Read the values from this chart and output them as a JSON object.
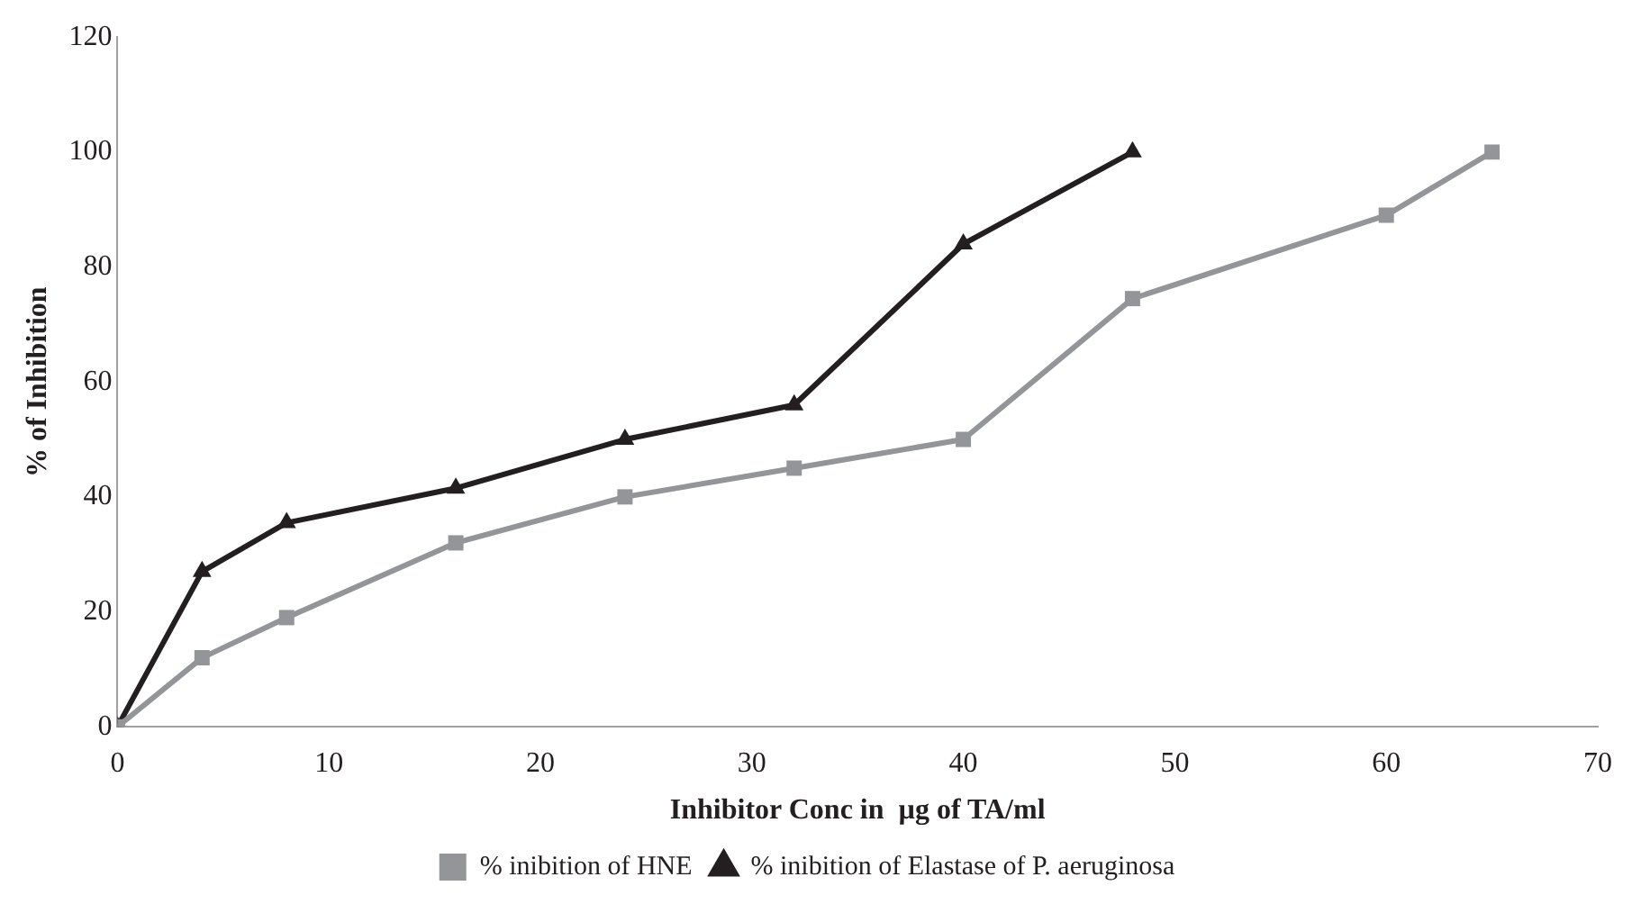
{
  "chart_data": {
    "type": "line",
    "xlabel": "Inhibitor Conc in  µg of TA/ml",
    "ylabel": "% of Inhibition",
    "xlim": [
      0,
      70
    ],
    "xticks": [
      0,
      10,
      20,
      30,
      40,
      50,
      60,
      70
    ],
    "ylim": [
      0,
      120
    ],
    "yticks": [
      0,
      20,
      40,
      60,
      80,
      100,
      120
    ],
    "grid": false,
    "legend": "bottom",
    "line_style": "solid",
    "series": [
      {
        "name": "% inibition of HNE",
        "color": "#939598",
        "marker": "square",
        "x": [
          0,
          4,
          8,
          16,
          24,
          32,
          40,
          48,
          60,
          65
        ],
        "values": [
          0,
          12,
          19,
          32,
          40,
          45,
          50,
          74.5,
          89,
          100
        ]
      },
      {
        "name": "% inibition of Elastase of P. aeruginosa",
        "color": "#231f20",
        "marker": "triangle",
        "x": [
          0,
          4,
          8,
          16,
          24,
          32,
          40,
          48
        ],
        "values": [
          0,
          27,
          35.5,
          41.5,
          50,
          56,
          84,
          100
        ]
      }
    ]
  }
}
